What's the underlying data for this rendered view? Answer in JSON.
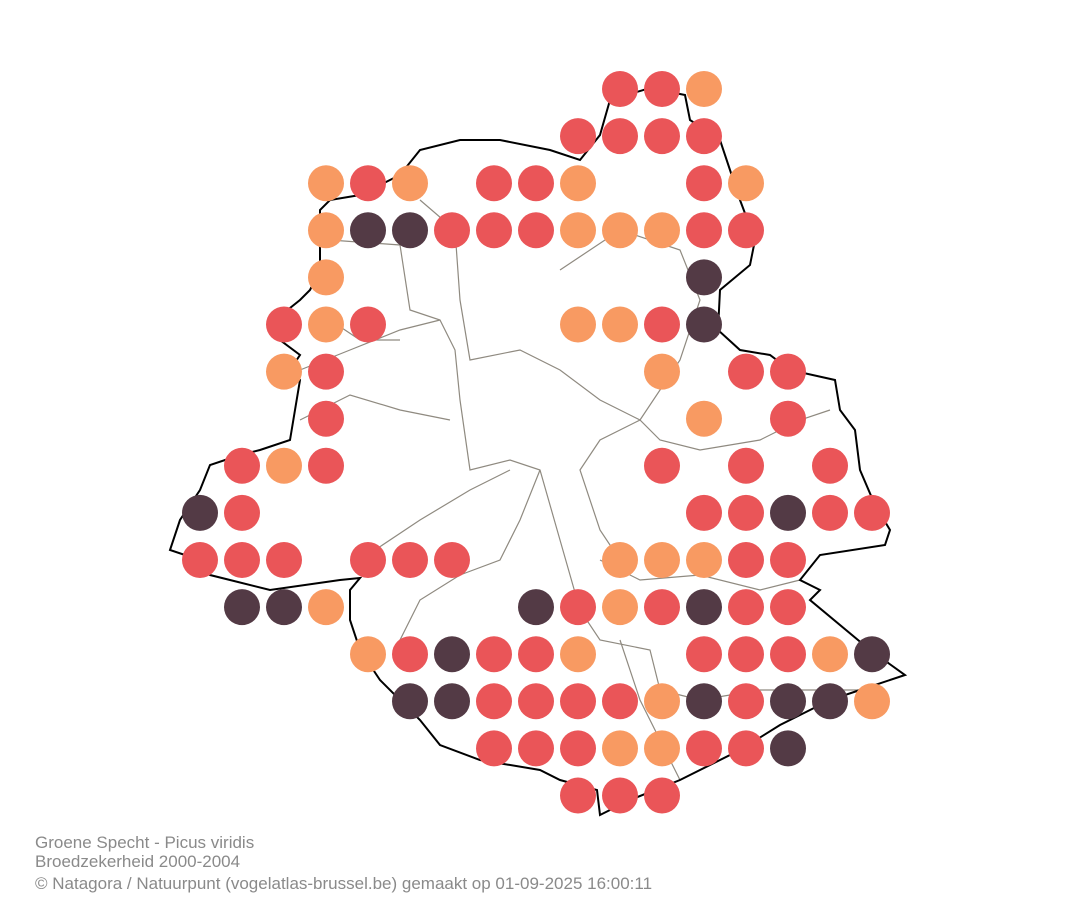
{
  "footer": {
    "line1": "Groene Specht - Picus viridis",
    "line2": "Broedzekerheid 2000-2004",
    "line3": "© Natagora / Natuurpunt (vogelatlas-brussel.be) gemaakt op 01-09-2025 16:00:11"
  }
}
